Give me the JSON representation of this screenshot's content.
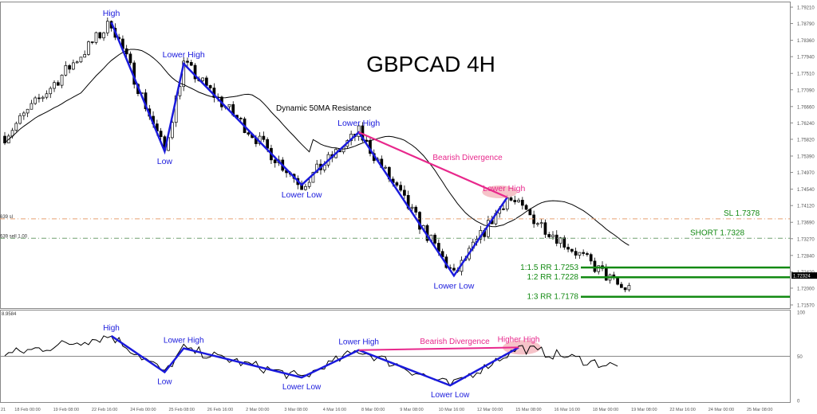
{
  "chart_data": [
    {
      "type": "candlestick",
      "title": "GBPCAD 4H",
      "symbol_levels_left": [
        "639 sl",
        "639 sell 1.00"
      ],
      "y_ticks": [
        "1.79210",
        "1.78790",
        "1.78360",
        "1.77940",
        "1.77510",
        "1.77090",
        "1.76660",
        "1.76240",
        "1.75820",
        "1.75390",
        "1.74970",
        "1.74540",
        "1.74120",
        "1.73690",
        "1.73270",
        "1.72840",
        "1.72420",
        "1.72000",
        "1.71570"
      ],
      "ylim": [
        1.7157,
        1.7921
      ],
      "current_price": "1.72324",
      "x_ticks": [
        "21",
        "18 Feb 00:00",
        "19 Feb 08:00",
        "22 Feb 16:00",
        "24 Feb 00:00",
        "25 Feb 08:00",
        "26 Feb 16:00",
        "2 Mar 00:00",
        "3 Mar 08:00",
        "4 Mar 16:00",
        "8 Mar 00:00",
        "9 Mar 08:00",
        "10 Mar 16:00",
        "12 Mar 00:00",
        "15 Mar 08:00",
        "16 Mar 16:00",
        "18 Mar 00:00",
        "19 Mar 08:00",
        "22 Mar 16:00",
        "24 Mar 00:00",
        "25 Mar 08:00"
      ],
      "bars": 205,
      "swing_points": [
        {
          "bar": 0,
          "price": 1.759
        },
        {
          "bar": 28,
          "price": 1.7882,
          "label": "High"
        },
        {
          "bar": 42,
          "price": 1.7551,
          "label": "Low"
        },
        {
          "bar": 47,
          "price": 1.7776,
          "label": "Lower High"
        },
        {
          "bar": 78,
          "price": 1.7465,
          "label": "Lower Low"
        },
        {
          "bar": 93,
          "price": 1.76,
          "label": "Lower High"
        },
        {
          "bar": 118,
          "price": 1.7232,
          "label": "Lower Low"
        },
        {
          "bar": 132,
          "price": 1.7433,
          "label": "Lower High"
        },
        {
          "bar": 162,
          "price": 1.72
        },
        {
          "bar": 161,
          "price": 1.7225
        }
      ],
      "ma_label": "Dynamic 50MA Resistance",
      "divergence_label": "Bearish Divergence",
      "levels": [
        {
          "label": "SL 1.7378",
          "price": 1.7378,
          "color": "#e8a070",
          "style": "dashdot"
        },
        {
          "label": "SHORT 1.7328",
          "price": 1.7328,
          "color": "#70a070",
          "style": "dashdot"
        },
        {
          "label": "1:1.5 RR 1.7253",
          "price": 1.7253,
          "color": "#138a13"
        },
        {
          "label": "1:2 RR 1.7228",
          "price": 1.7228,
          "color": "#138a13"
        },
        {
          "label": "1:3 RR 1.7178",
          "price": 1.7178,
          "color": "#138a13"
        }
      ]
    },
    {
      "type": "line",
      "indicator_value": "8.9584",
      "ylim": [
        0,
        100
      ],
      "y_ticks": [
        "100",
        "50",
        "0"
      ],
      "swing_points": [
        {
          "bar": 0,
          "value": 52
        },
        {
          "bar": 28,
          "value": 73,
          "label": "High"
        },
        {
          "bar": 42,
          "value": 32,
          "label": "Low"
        },
        {
          "bar": 47,
          "value": 59,
          "label": "Lower High"
        },
        {
          "bar": 78,
          "value": 26,
          "label": "Lower Low"
        },
        {
          "bar": 93,
          "value": 57,
          "label": "Lower High"
        },
        {
          "bar": 117,
          "value": 17,
          "label": "Lower Low"
        },
        {
          "bar": 135,
          "value": 60,
          "label": "Higher High"
        },
        {
          "bar": 161,
          "value": 38
        }
      ],
      "divergence_label": "Bearish Divergence"
    }
  ],
  "colors": {
    "pattern": "#1a1adc",
    "divergence": "#e8288c",
    "target": "#138a13",
    "ma": "#000000",
    "highlight": "#f4b4bc"
  }
}
